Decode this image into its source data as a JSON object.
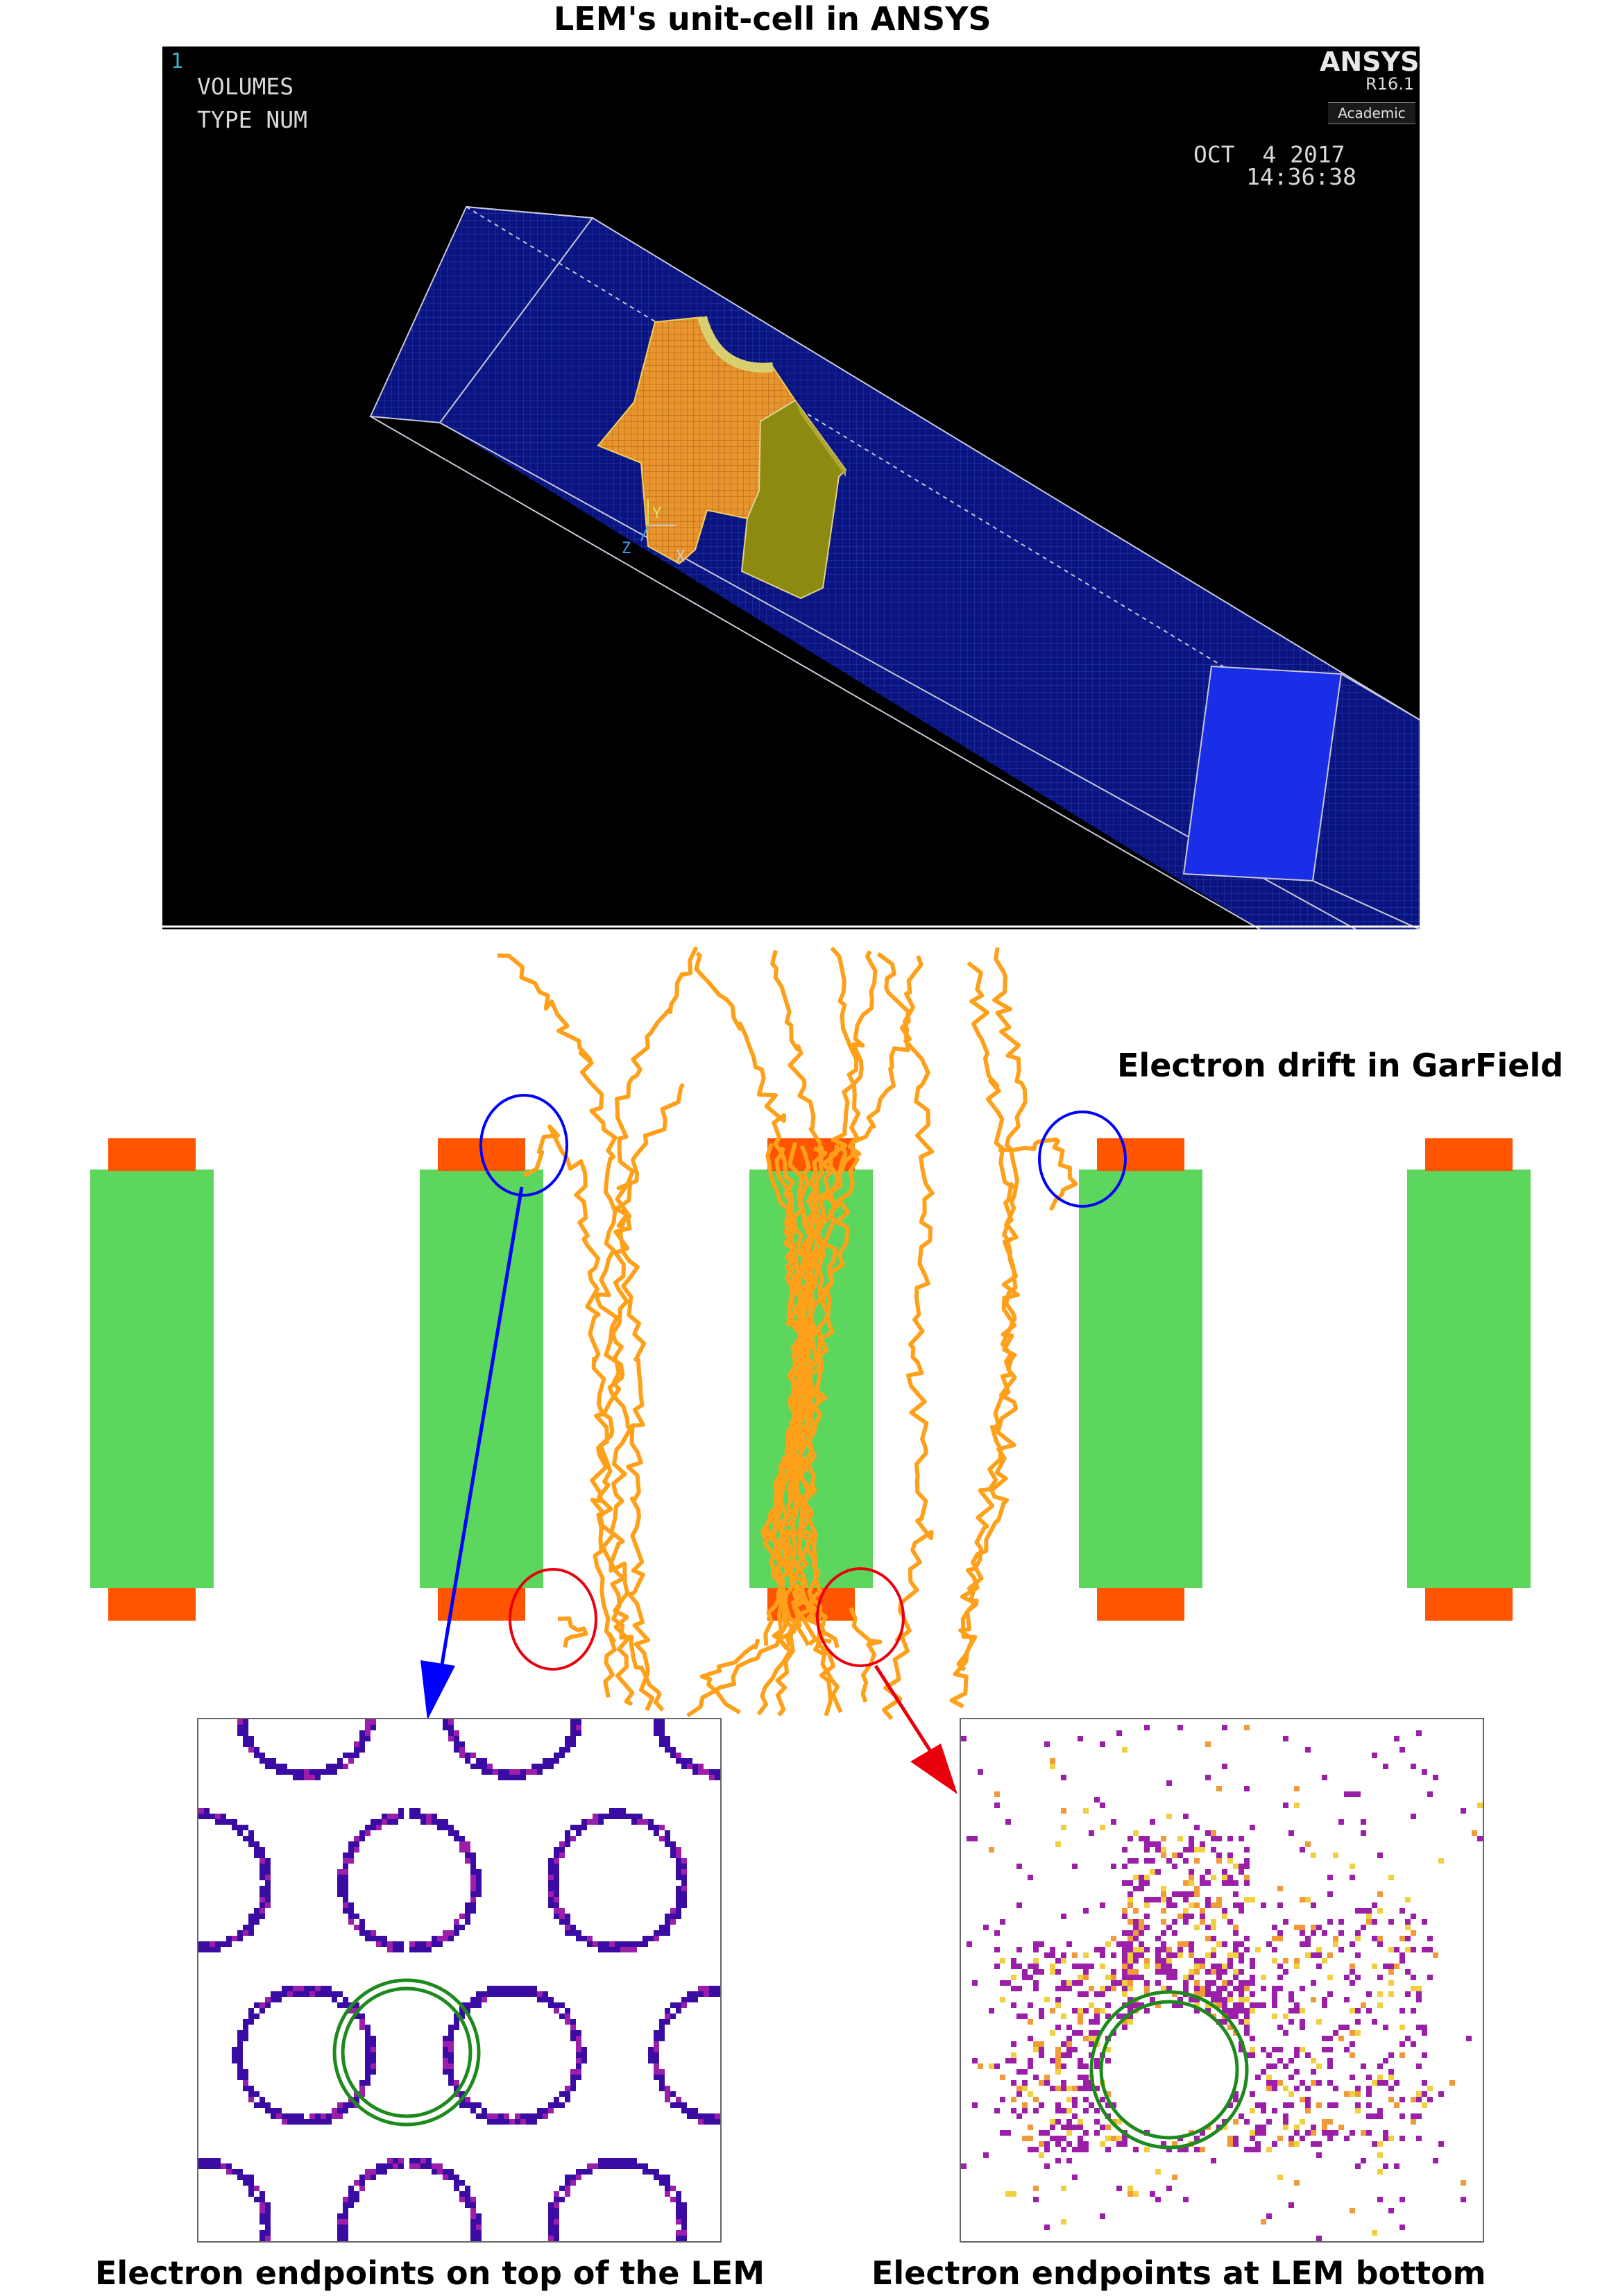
{
  "titles": {
    "ansys": "LEM's unit-cell in ANSYS",
    "garfield": "Electron drift in GarField",
    "top_endpoints": "Electron endpoints on top of the LEM",
    "bottom_endpoints": "Electron endpoints at LEM bottom"
  },
  "ansys_view": {
    "window_number": "1",
    "mode_line1": "VOLUMES",
    "mode_line2": "TYPE NUM",
    "logo": "ANSYS",
    "release": "R16.1",
    "edition": "Academic",
    "date": "OCT  4 2017",
    "time": "14:36:38",
    "axis_labels": [
      "Y",
      "Z",
      "X"
    ],
    "colors": {
      "background": "#000000",
      "volume": "#0a1480",
      "end_face": "#1a2ee8",
      "copper": "#e8952e",
      "electrode": "#8c8a10"
    }
  },
  "garfield_view": {
    "colors": {
      "insulator": "#5cd65c",
      "electrode": "#ff5500",
      "electron_track": "#ffa01a",
      "marker_top": "#0000ff",
      "marker_bottom": "#e8000d"
    }
  },
  "histograms": {
    "colors": {
      "hole_outline": "#1e8a1e",
      "ring_low": "#3a0ca3",
      "ring_mid": "#9b1fa8",
      "ring_high": "#f09a3a"
    }
  }
}
